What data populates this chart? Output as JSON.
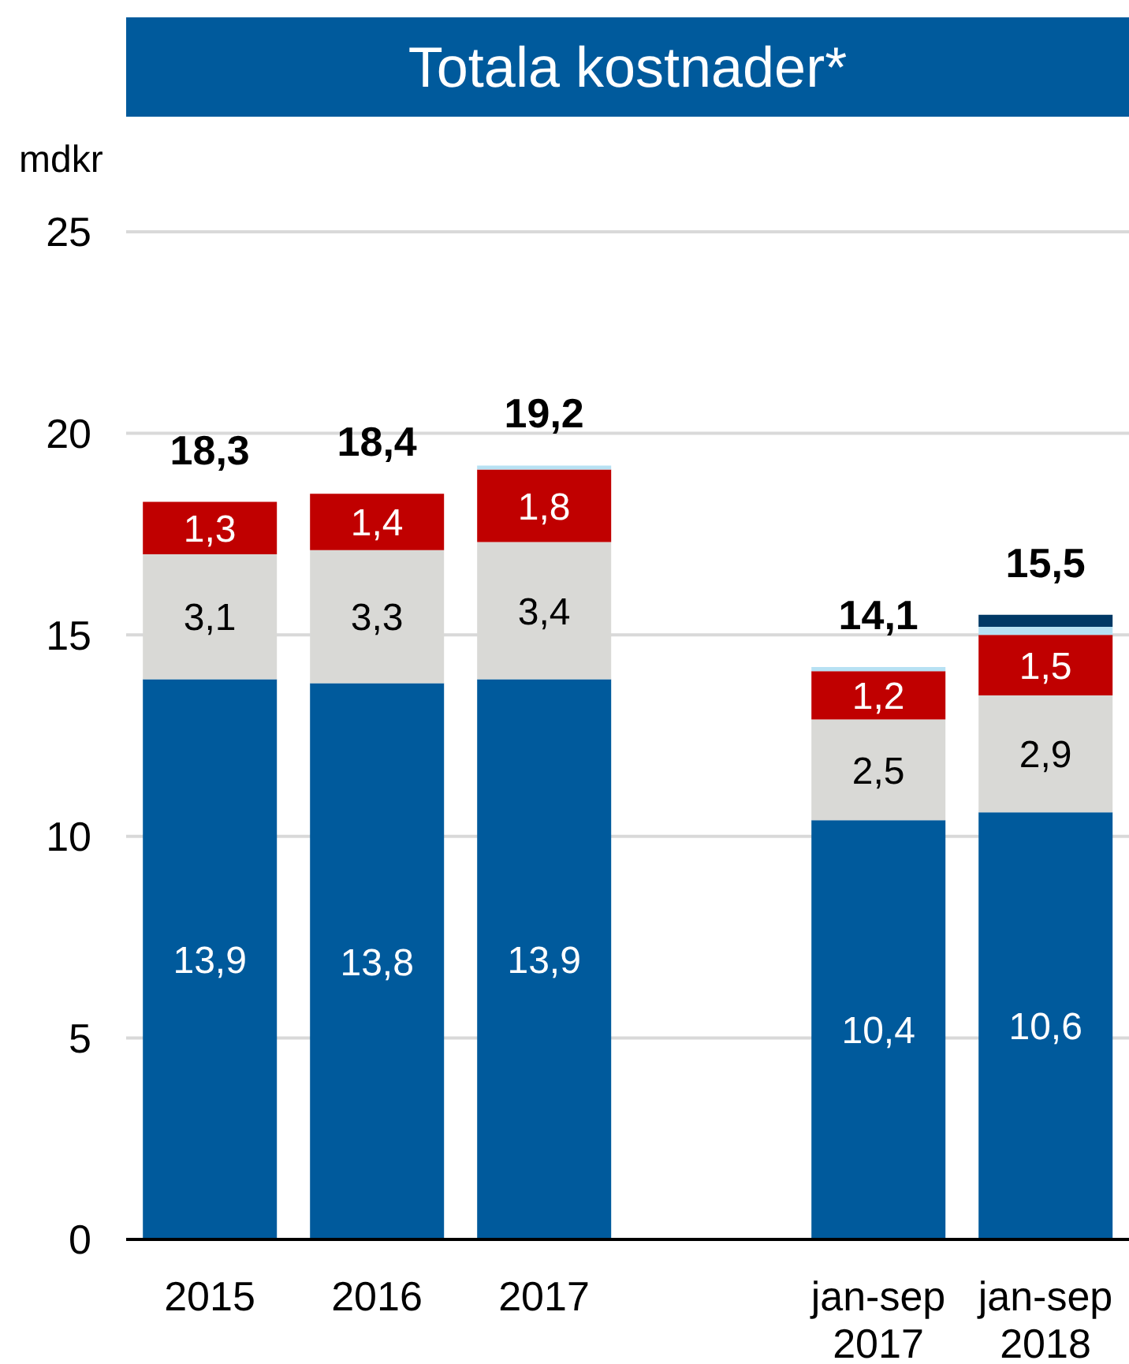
{
  "chart_data": {
    "type": "bar",
    "title": "Totala kostnader*",
    "ylabel": "mdkr",
    "categories": [
      "2015",
      "2016",
      "2017",
      null,
      "jan-sep 2017",
      "jan-sep 2018"
    ],
    "series": [
      {
        "color": "#005a9c",
        "values": [
          13.9,
          13.8,
          13.9,
          null,
          10.4,
          10.6
        ],
        "value_labels": [
          "13,9",
          "13,8",
          "13,9",
          null,
          "10,4",
          "10,6"
        ]
      },
      {
        "color": "#d9d9d6",
        "values": [
          3.1,
          3.3,
          3.4,
          null,
          2.5,
          2.9
        ],
        "value_labels": [
          "3,1",
          "3,3",
          "3,4",
          null,
          "2,5",
          "2,9"
        ]
      },
      {
        "color": "#c00000",
        "values": [
          1.3,
          1.4,
          1.8,
          null,
          1.2,
          1.5
        ],
        "value_labels": [
          "1,3",
          "1,4",
          "1,8",
          null,
          "1,2",
          "1,5"
        ]
      },
      {
        "color": "#b7e1f3",
        "values": [
          null,
          null,
          0.1,
          null,
          0.1,
          0.2
        ]
      },
      {
        "color": "#003865",
        "values": [
          null,
          null,
          null,
          null,
          null,
          0.3
        ]
      }
    ],
    "stacked": true,
    "totals": [
      "18,3",
      "18,4",
      "19,2",
      null,
      "14,1",
      "15,5"
    ],
    "ylim": [
      0,
      25
    ],
    "yticks": [
      0,
      5,
      10,
      15,
      20,
      25
    ],
    "grid": "y"
  }
}
